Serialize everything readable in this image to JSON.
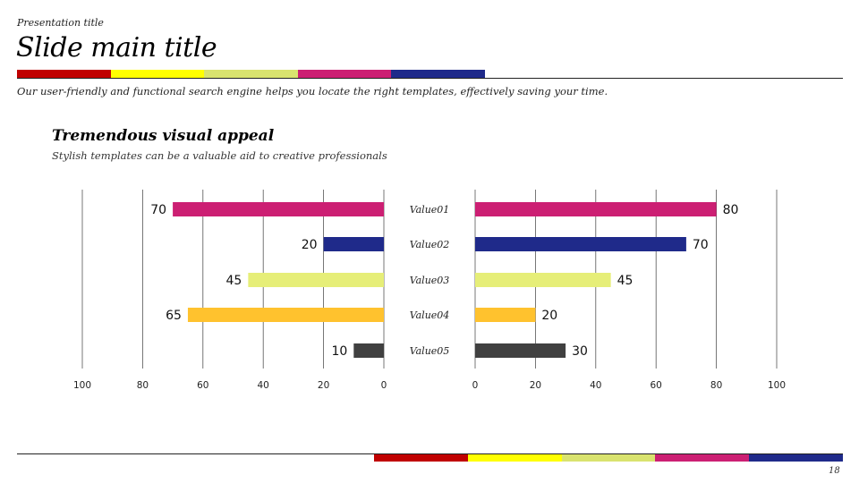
{
  "presentation_title": "Presentation title",
  "slide_title": "Slide main title",
  "subtitle": "Our user-friendly and functional search engine helps you locate the right templates, effectively saving your time.",
  "section": {
    "title": "Tremendous visual appeal",
    "subtitle": "Stylish templates can be a valuable aid to creative professionals"
  },
  "page_number": "18",
  "palette": [
    "#c00000",
    "#ffff00",
    "#d9e36f",
    "#cc1f73",
    "#1f2a8a"
  ],
  "chart_data": {
    "type": "bar",
    "orientation": "horizontal-butterfly",
    "categories": [
      "Value01",
      "Value02",
      "Value03",
      "Value04",
      "Value05"
    ],
    "series": [
      {
        "name": "left",
        "values": [
          70,
          20,
          45,
          65,
          10
        ]
      },
      {
        "name": "right",
        "values": [
          80,
          70,
          45,
          20,
          30
        ]
      }
    ],
    "bar_colors": [
      "#cc1f73",
      "#1f2a8a",
      "#e6ee78",
      "#ffc22e",
      "#404040"
    ],
    "xlim": [
      0,
      100
    ],
    "ticks": [
      0,
      20,
      40,
      60,
      80,
      100
    ],
    "tick_labels": [
      "0",
      "20",
      "40",
      "60",
      "80",
      "100"
    ],
    "grid": true
  }
}
